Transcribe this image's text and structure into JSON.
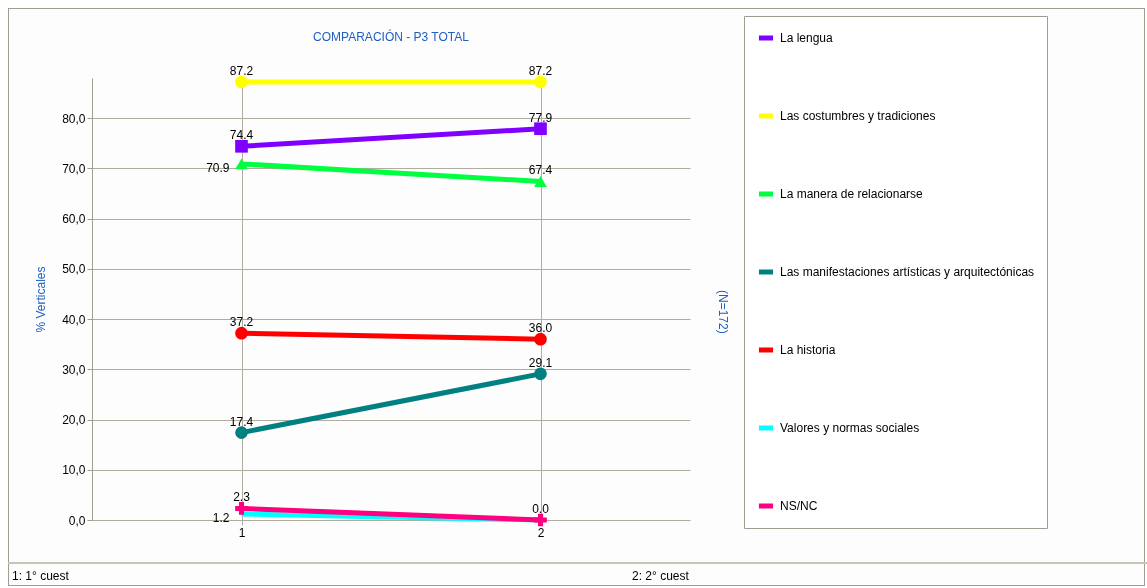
{
  "chart_data": {
    "type": "line",
    "title": "COMPARACIÓN - P3 TOTAL",
    "ylabel": "% Verticales",
    "y2label": "(N=172)",
    "categories": [
      "1",
      "2"
    ],
    "series": [
      {
        "name": "La lengua",
        "color": "#7f00ff",
        "marker": "square",
        "values": [
          74.4,
          77.9
        ],
        "value_labels": [
          "74.4",
          "77.9"
        ]
      },
      {
        "name": "Las costumbres y tradiciones",
        "color": "#ffff00",
        "marker": "circle",
        "values": [
          87.2,
          87.2
        ],
        "value_labels": [
          "87.2",
          "87.2"
        ]
      },
      {
        "name": "La manera de relacionarse",
        "color": "#00ff40",
        "marker": "triangle",
        "values": [
          70.9,
          67.4
        ],
        "value_labels": [
          "70.9",
          "67.4"
        ]
      },
      {
        "name": "Las manifestaciones artísticas y arquitectónicas",
        "color": "#008080",
        "marker": "circle",
        "values": [
          17.4,
          29.1
        ],
        "value_labels": [
          "17.4",
          "29.1"
        ]
      },
      {
        "name": "La historia",
        "color": "#ff0000",
        "marker": "circle",
        "values": [
          37.2,
          36.0
        ],
        "value_labels": [
          "37.2",
          "36.0"
        ]
      },
      {
        "name": "Valores y normas sociales",
        "color": "#00ffff",
        "marker": "none",
        "values": [
          1.2,
          0.0
        ],
        "value_labels": [
          "1.2",
          null
        ]
      },
      {
        "name": "NS/NC",
        "color": "#ff0080",
        "marker": "cross",
        "values": [
          2.3,
          0.0
        ],
        "value_labels": [
          "2.3",
          "0.0"
        ]
      }
    ],
    "ylim": [
      0,
      88
    ],
    "yticks": [
      {
        "value": 0,
        "label": "0,0"
      },
      {
        "value": 10,
        "label": "10,0"
      },
      {
        "value": 20,
        "label": "20,0"
      },
      {
        "value": 30,
        "label": "30,0"
      },
      {
        "value": 40,
        "label": "40,0"
      },
      {
        "value": 50,
        "label": "50,0"
      },
      {
        "value": 60,
        "label": "60,0"
      },
      {
        "value": 70,
        "label": "70,0"
      },
      {
        "value": 80,
        "label": "80,0"
      }
    ],
    "grid": true,
    "legend": "right",
    "data_labels": true,
    "annotations": [
      "1: 1° cuest",
      "2: 2° cuest"
    ]
  }
}
